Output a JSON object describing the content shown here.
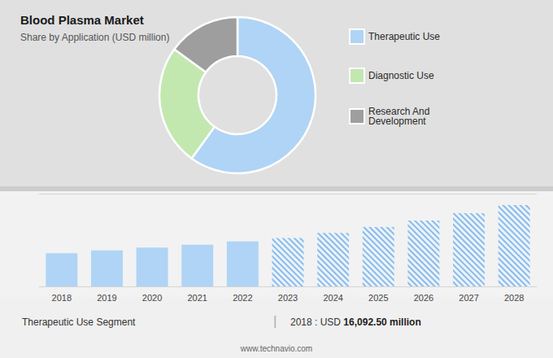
{
  "chart_data": [
    {
      "type": "pie",
      "title": "Blood Plasma Market",
      "subtitle": "Share by Application (USD million)",
      "categories": [
        "Therapeutic Use",
        "Diagnostic Use",
        "Research And\nDevelopment"
      ],
      "values": [
        60,
        25,
        15
      ],
      "colors": [
        "#afd4f5",
        "#c2e8b0",
        "#9e9e9e"
      ],
      "legend": "right"
    },
    {
      "type": "bar",
      "categories": [
        "2018",
        "2019",
        "2020",
        "2021",
        "2022",
        "2023",
        "2024",
        "2025",
        "2026",
        "2027",
        "2028"
      ],
      "series": [
        {
          "color": "#afd4f5",
          "values": [
            16092.5,
            17500,
            18800,
            20200,
            21800,
            null,
            null,
            null,
            null,
            null,
            null
          ]
        },
        {
          "color": "#e8f4ff",
          "values": [
            null,
            null,
            null,
            null,
            null,
            23500,
            26000,
            28800,
            32000,
            35500,
            39500
          ]
        }
      ],
      "ylim": [
        0,
        45000
      ],
      "yticks": [
        0,
        45000
      ],
      "grid": true,
      "tick_labels": "x",
      "annotations": [
        "Therapeutic Use Segment",
        "|",
        "2018 : USD ",
        "16,092.50 million",
        "www.technavio.com"
      ]
    }
  ]
}
